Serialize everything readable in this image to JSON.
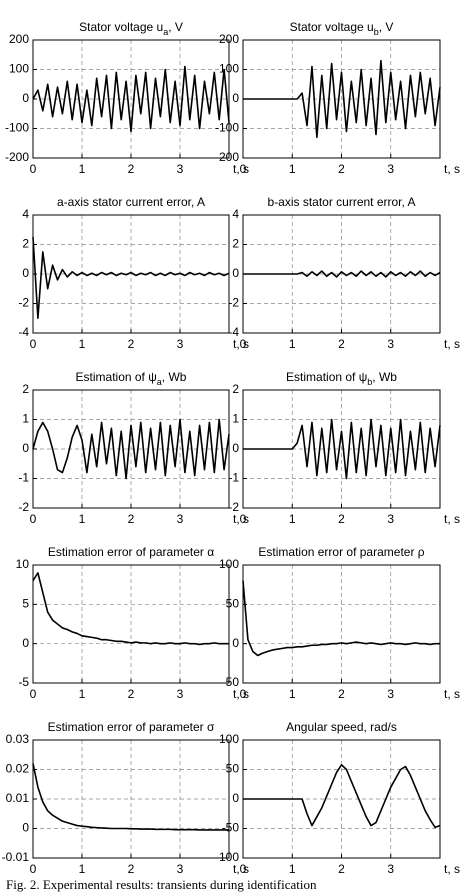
{
  "chart_data": [
    {
      "type": "line",
      "title": [
        "Stator voltage u",
        "a",
        ", V"
      ],
      "xlabel": "t, s",
      "x": [
        0,
        0.1,
        0.2,
        0.3,
        0.4,
        0.5,
        0.6,
        0.7,
        0.8,
        0.9,
        1,
        1.1,
        1.2,
        1.3,
        1.4,
        1.5,
        1.6,
        1.7,
        1.8,
        1.9,
        2,
        2.1,
        2.2,
        2.3,
        2.4,
        2.5,
        2.6,
        2.7,
        2.8,
        2.9,
        3,
        3.1,
        3.2,
        3.3,
        3.4,
        3.5,
        3.6,
        3.7,
        3.8,
        3.9,
        4
      ],
      "series": [
        {
          "color": "#000000",
          "values": [
            0,
            30,
            -40,
            50,
            -60,
            40,
            -50,
            60,
            -70,
            50,
            -80,
            30,
            -90,
            70,
            -60,
            80,
            -100,
            90,
            -70,
            60,
            -110,
            80,
            -50,
            90,
            -100,
            70,
            -60,
            100,
            -80,
            60,
            -90,
            110,
            -70,
            80,
            -100,
            60,
            -50,
            90,
            -70,
            100,
            -80
          ]
        }
      ],
      "xlim": [
        0,
        4
      ],
      "xticks": [
        0,
        1,
        2,
        3
      ],
      "ylim": [
        -200,
        200
      ],
      "yticks": [
        -200,
        -100,
        0,
        100,
        200
      ],
      "grid": true
    },
    {
      "type": "line",
      "title": [
        "Stator voltage u",
        "b",
        ", V"
      ],
      "xlabel": "t, s",
      "x": [
        0,
        0.1,
        0.2,
        0.3,
        0.4,
        0.5,
        0.6,
        0.7,
        0.8,
        0.9,
        1,
        1.1,
        1.2,
        1.3,
        1.4,
        1.5,
        1.6,
        1.7,
        1.8,
        1.9,
        2,
        2.1,
        2.2,
        2.3,
        2.4,
        2.5,
        2.6,
        2.7,
        2.8,
        2.9,
        3,
        3.1,
        3.2,
        3.3,
        3.4,
        3.5,
        3.6,
        3.7,
        3.8,
        3.9,
        4
      ],
      "series": [
        {
          "color": "#000000",
          "values": [
            0,
            0,
            0,
            0,
            0,
            0,
            0,
            0,
            0,
            0,
            0,
            0,
            20,
            -90,
            110,
            -130,
            80,
            -100,
            120,
            -70,
            90,
            -110,
            60,
            -80,
            100,
            -90,
            70,
            -120,
            130,
            -80,
            90,
            -70,
            60,
            -100,
            80,
            -60,
            90,
            -50,
            70,
            -90,
            40
          ]
        }
      ],
      "xlim": [
        0,
        4
      ],
      "xticks": [
        0,
        1,
        2,
        3
      ],
      "ylim": [
        -200,
        200
      ],
      "yticks": [
        -200,
        -100,
        0,
        100,
        200
      ],
      "grid": true
    },
    {
      "type": "line",
      "title": "a-axis stator current error, A",
      "xlabel": "t, s",
      "x": [
        0,
        0.1,
        0.2,
        0.3,
        0.4,
        0.5,
        0.6,
        0.7,
        0.8,
        0.9,
        1,
        1.1,
        1.2,
        1.3,
        1.4,
        1.5,
        1.6,
        1.7,
        1.8,
        1.9,
        2,
        2.1,
        2.2,
        2.3,
        2.4,
        2.5,
        2.6,
        2.7,
        2.8,
        2.9,
        3,
        3.1,
        3.2,
        3.3,
        3.4,
        3.5,
        3.6,
        3.7,
        3.8,
        3.9,
        4
      ],
      "series": [
        {
          "color": "#000000",
          "values": [
            2.5,
            -3,
            1.5,
            -1,
            0.6,
            -0.4,
            0.3,
            -0.2,
            0.15,
            -0.1,
            0.1,
            -0.1,
            0.05,
            -0.1,
            0.1,
            -0.05,
            0.1,
            -0.1,
            0.05,
            -0.05,
            0.1,
            -0.1,
            0.05,
            -0.05,
            0.1,
            -0.1,
            0.05,
            -0.1,
            0.1,
            -0.05,
            0.05,
            -0.1,
            0.1,
            -0.05,
            0.05,
            -0.1,
            0.1,
            -0.05,
            0.05,
            -0.1,
            0.05
          ]
        }
      ],
      "xlim": [
        0,
        4
      ],
      "xticks": [
        0,
        1,
        2,
        3
      ],
      "ylim": [
        -4,
        4
      ],
      "yticks": [
        -4,
        -2,
        0,
        2,
        4
      ],
      "grid": true
    },
    {
      "type": "line",
      "title": "b-axis stator current error, A",
      "xlabel": "t, s",
      "x": [
        0,
        0.1,
        0.2,
        0.3,
        0.4,
        0.5,
        0.6,
        0.7,
        0.8,
        0.9,
        1,
        1.1,
        1.2,
        1.3,
        1.4,
        1.5,
        1.6,
        1.7,
        1.8,
        1.9,
        2,
        2.1,
        2.2,
        2.3,
        2.4,
        2.5,
        2.6,
        2.7,
        2.8,
        2.9,
        3,
        3.1,
        3.2,
        3.3,
        3.4,
        3.5,
        3.6,
        3.7,
        3.8,
        3.9,
        4
      ],
      "series": [
        {
          "color": "#000000",
          "values": [
            0,
            0,
            0,
            0,
            0,
            0,
            0,
            0,
            0,
            0,
            0,
            0,
            0.1,
            -0.15,
            0.15,
            -0.1,
            0.2,
            -0.15,
            0.1,
            -0.2,
            0.15,
            -0.1,
            0.1,
            -0.15,
            0.2,
            -0.1,
            0.15,
            -0.15,
            0.1,
            -0.2,
            0.15,
            -0.1,
            0.1,
            -0.15,
            0.15,
            -0.1,
            0.2,
            -0.15,
            0.1,
            -0.1,
            0.1
          ]
        }
      ],
      "xlim": [
        0,
        4
      ],
      "xticks": [
        0,
        1,
        2,
        3
      ],
      "ylim": [
        -4,
        4
      ],
      "yticks": [
        -4,
        -2,
        0,
        2,
        4
      ],
      "grid": true
    },
    {
      "type": "line",
      "title": [
        "Estimation of ψ",
        "a",
        ", Wb"
      ],
      "xlabel": "t, s",
      "x": [
        0,
        0.1,
        0.2,
        0.3,
        0.4,
        0.5,
        0.6,
        0.7,
        0.8,
        0.9,
        1,
        1.1,
        1.2,
        1.3,
        1.4,
        1.5,
        1.6,
        1.7,
        1.8,
        1.9,
        2,
        2.1,
        2.2,
        2.3,
        2.4,
        2.5,
        2.6,
        2.7,
        2.8,
        2.9,
        3,
        3.1,
        3.2,
        3.3,
        3.4,
        3.5,
        3.6,
        3.7,
        3.8,
        3.9,
        4
      ],
      "series": [
        {
          "color": "#000000",
          "values": [
            0,
            0.6,
            0.9,
            0.6,
            0,
            -0.7,
            -0.8,
            -0.3,
            0.4,
            0.8,
            0.3,
            -0.8,
            0.5,
            -0.6,
            0.9,
            -0.5,
            0.7,
            -0.9,
            0.6,
            -1,
            0.8,
            -0.6,
            0.9,
            -0.8,
            0.7,
            -0.7,
            0.9,
            -0.9,
            0.8,
            -0.6,
            1,
            -0.8,
            0.6,
            -0.9,
            0.8,
            -0.7,
            0.9,
            -0.8,
            1,
            -0.7,
            0.5
          ]
        }
      ],
      "xlim": [
        0,
        4
      ],
      "xticks": [
        0,
        1,
        2,
        3
      ],
      "ylim": [
        -2,
        2
      ],
      "yticks": [
        -2,
        -1,
        0,
        1,
        2
      ],
      "grid": true
    },
    {
      "type": "line",
      "title": [
        "Estimation of ψ",
        "b",
        ", Wb"
      ],
      "xlabel": "t, s",
      "x": [
        0,
        0.1,
        0.2,
        0.3,
        0.4,
        0.5,
        0.6,
        0.7,
        0.8,
        0.9,
        1,
        1.1,
        1.2,
        1.3,
        1.4,
        1.5,
        1.6,
        1.7,
        1.8,
        1.9,
        2,
        2.1,
        2.2,
        2.3,
        2.4,
        2.5,
        2.6,
        2.7,
        2.8,
        2.9,
        3,
        3.1,
        3.2,
        3.3,
        3.4,
        3.5,
        3.6,
        3.7,
        3.8,
        3.9,
        4
      ],
      "series": [
        {
          "color": "#000000",
          "values": [
            0,
            0,
            0,
            0,
            0,
            0,
            0,
            0,
            0,
            0,
            0,
            0.2,
            0.8,
            -0.6,
            0.9,
            -0.9,
            0.7,
            -0.8,
            1,
            -0.7,
            0.6,
            -1,
            0.9,
            -0.8,
            0.7,
            -0.9,
            1,
            -0.6,
            0.8,
            -0.9,
            0.7,
            -0.8,
            1,
            -0.9,
            0.6,
            -0.7,
            0.9,
            -0.8,
            0.7,
            -0.6,
            0.8
          ]
        }
      ],
      "xlim": [
        0,
        4
      ],
      "xticks": [
        0,
        1,
        2,
        3
      ],
      "ylim": [
        -2,
        2
      ],
      "yticks": [
        -2,
        -1,
        0,
        1,
        2
      ],
      "grid": true
    },
    {
      "type": "line",
      "title": "Estimation error of parameter α",
      "xlabel": "t, s",
      "x": [
        0,
        0.1,
        0.2,
        0.3,
        0.4,
        0.5,
        0.6,
        0.7,
        0.8,
        0.9,
        1,
        1.1,
        1.2,
        1.3,
        1.4,
        1.5,
        1.6,
        1.7,
        1.8,
        1.9,
        2,
        2.1,
        2.2,
        2.3,
        2.4,
        2.5,
        2.6,
        2.7,
        2.8,
        2.9,
        3,
        3.1,
        3.2,
        3.3,
        3.4,
        3.5,
        3.6,
        3.7,
        3.8,
        3.9,
        4
      ],
      "series": [
        {
          "color": "#000000",
          "values": [
            8,
            9,
            6.5,
            4,
            3,
            2.5,
            2,
            1.8,
            1.5,
            1.3,
            1,
            0.9,
            0.8,
            0.7,
            0.5,
            0.5,
            0.4,
            0.3,
            0.3,
            0.2,
            0.1,
            0.2,
            0.1,
            0.1,
            0,
            0.1,
            0,
            0,
            0.1,
            0,
            0,
            0.1,
            0,
            0,
            -0.1,
            0,
            0,
            0.1,
            0,
            0,
            0
          ]
        }
      ],
      "xlim": [
        0,
        4
      ],
      "xticks": [
        0,
        1,
        2,
        3
      ],
      "ylim": [
        -5,
        10
      ],
      "yticks": [
        -5,
        0,
        5,
        10
      ],
      "grid": true
    },
    {
      "type": "line",
      "title": "Estimation error of parameter ρ",
      "xlabel": "t, s",
      "x": [
        0,
        0.1,
        0.2,
        0.3,
        0.4,
        0.5,
        0.6,
        0.7,
        0.8,
        0.9,
        1,
        1.1,
        1.2,
        1.3,
        1.4,
        1.5,
        1.6,
        1.7,
        1.8,
        1.9,
        2,
        2.1,
        2.2,
        2.3,
        2.4,
        2.5,
        2.6,
        2.7,
        2.8,
        2.9,
        3,
        3.1,
        3.2,
        3.3,
        3.4,
        3.5,
        3.6,
        3.7,
        3.8,
        3.9,
        4
      ],
      "series": [
        {
          "color": "#000000",
          "values": [
            80,
            5,
            -10,
            -15,
            -12,
            -10,
            -8,
            -7,
            -6,
            -5,
            -5,
            -4,
            -4,
            -3,
            -2,
            -2,
            -1,
            -1,
            0,
            0,
            1,
            0,
            1,
            2,
            1,
            0,
            1,
            0,
            -1,
            0,
            1,
            0,
            0,
            -1,
            0,
            1,
            0,
            0,
            -1,
            0,
            0
          ]
        }
      ],
      "xlim": [
        0,
        4
      ],
      "xticks": [
        0,
        1,
        2,
        3
      ],
      "ylim": [
        -50,
        100
      ],
      "yticks": [
        -50,
        0,
        50,
        100
      ],
      "grid": true
    },
    {
      "type": "line",
      "title": "Estimation error of parameter σ",
      "xlabel": "t, s",
      "x": [
        0,
        0.1,
        0.2,
        0.3,
        0.4,
        0.5,
        0.6,
        0.7,
        0.8,
        0.9,
        1,
        1.1,
        1.2,
        1.3,
        1.4,
        1.5,
        1.6,
        1.7,
        1.8,
        1.9,
        2,
        2.1,
        2.2,
        2.3,
        2.4,
        2.5,
        2.6,
        2.7,
        2.8,
        2.9,
        3,
        3.1,
        3.2,
        3.3,
        3.4,
        3.5,
        3.6,
        3.7,
        3.8,
        3.9,
        4
      ],
      "series": [
        {
          "color": "#000000",
          "values": [
            0.022,
            0.014,
            0.009,
            0.006,
            0.0045,
            0.0035,
            0.0025,
            0.002,
            0.0015,
            0.001,
            0.0008,
            0.0006,
            0.0004,
            0.0003,
            0.0002,
            0.0001,
            0,
            0,
            0,
            0,
            -0.0001,
            -0.0001,
            -0.0002,
            -0.0002,
            -0.0002,
            -0.0003,
            -0.0003,
            -0.0003,
            -0.0003,
            -0.0004,
            -0.0004,
            -0.0004,
            -0.0004,
            -0.0004,
            -0.0005,
            -0.0005,
            -0.0005,
            -0.0005,
            -0.0005,
            -0.0005,
            -0.0005
          ]
        }
      ],
      "xlim": [
        0,
        4
      ],
      "xticks": [
        0,
        1,
        2,
        3
      ],
      "ylim": [
        -0.01,
        0.03
      ],
      "yticks": [
        -0.01,
        0,
        0.01,
        0.02,
        0.03
      ],
      "grid": true
    },
    {
      "type": "line",
      "title": "Angular speed, rad/s",
      "xlabel": "t, s",
      "x": [
        0,
        0.1,
        0.2,
        0.3,
        0.4,
        0.5,
        0.6,
        0.7,
        0.8,
        0.9,
        1,
        1.1,
        1.2,
        1.3,
        1.4,
        1.5,
        1.6,
        1.7,
        1.8,
        1.9,
        2,
        2.1,
        2.2,
        2.3,
        2.4,
        2.5,
        2.6,
        2.7,
        2.8,
        2.9,
        3,
        3.1,
        3.2,
        3.3,
        3.4,
        3.5,
        3.6,
        3.7,
        3.8,
        3.9,
        4
      ],
      "series": [
        {
          "color": "#000000",
          "values": [
            0,
            0,
            0,
            0,
            0,
            0,
            0,
            0,
            0,
            0,
            0,
            0,
            0,
            -25,
            -45,
            -30,
            -15,
            5,
            25,
            45,
            58,
            50,
            30,
            10,
            -10,
            -30,
            -45,
            -40,
            -20,
            0,
            20,
            35,
            50,
            55,
            40,
            20,
            0,
            -20,
            -35,
            -48,
            -45
          ]
        }
      ],
      "xlim": [
        0,
        4
      ],
      "xticks": [
        0,
        1,
        2,
        3
      ],
      "ylim": [
        -100,
        100
      ],
      "yticks": [
        -100,
        -50,
        0,
        50,
        100
      ],
      "grid": true
    }
  ],
  "caption": "Fig. 2. Experimental results: transients during identification"
}
